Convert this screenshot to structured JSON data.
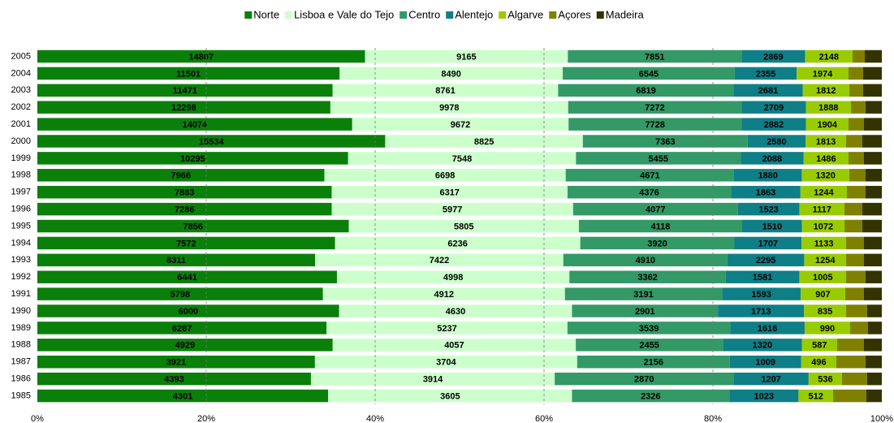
{
  "chart_data": {
    "type": "stacked-bar-100",
    "orientation": "horizontal",
    "categories": [
      "2005",
      "2004",
      "2003",
      "2002",
      "2001",
      "2000",
      "1999",
      "1998",
      "1997",
      "1996",
      "1995",
      "1994",
      "1993",
      "1992",
      "1991",
      "1990",
      "1989",
      "1988",
      "1987",
      "1986",
      "1985"
    ],
    "series": [
      {
        "name": "Norte",
        "color": "#0a800a",
        "label_color": "#ffffff",
        "values": [
          14807,
          11501,
          11471,
          12298,
          14074,
          15534,
          10295,
          7966,
          7883,
          7286,
          7856,
          7572,
          8311,
          6441,
          5798,
          6000,
          6287,
          4929,
          3921,
          4393,
          4301
        ]
      },
      {
        "name": "Lisboa e Vale do Tejo",
        "color": "#ccffcc",
        "label_color": "#000000",
        "values": [
          9165,
          8490,
          8761,
          9978,
          9672,
          8825,
          7548,
          6698,
          6317,
          5977,
          5805,
          6236,
          7422,
          4998,
          4912,
          4630,
          5237,
          4057,
          3704,
          3914,
          3605
        ]
      },
      {
        "name": "Centro",
        "color": "#339966",
        "label_color": "#ffffff",
        "values": [
          7851,
          6545,
          6819,
          7272,
          7728,
          7363,
          5455,
          4671,
          4376,
          4077,
          4118,
          3920,
          4910,
          3362,
          3191,
          2901,
          3539,
          2455,
          2156,
          2870,
          2326
        ]
      },
      {
        "name": "Alentejo",
        "color": "#0e7f86",
        "label_color": "#ffffff",
        "values": [
          2869,
          2355,
          2681,
          2709,
          2882,
          2580,
          2088,
          1880,
          1863,
          1523,
          1510,
          1707,
          2295,
          1581,
          1593,
          1713,
          1616,
          1320,
          1009,
          1207,
          1023
        ]
      },
      {
        "name": "Algarve",
        "color": "#99cc00",
        "label_color": "#000000",
        "values": [
          2148,
          1974,
          1812,
          1888,
          1904,
          1813,
          1486,
          1320,
          1244,
          1117,
          1072,
          1133,
          1254,
          1005,
          907,
          835,
          990,
          587,
          496,
          536,
          512
        ]
      },
      {
        "name": "Açores",
        "color": "#808000",
        "values": [
          550,
          556,
          536,
          613,
          690,
          725,
          511,
          451,
          500,
          442,
          450,
          454,
          534,
          419,
          379,
          420,
          388,
          447,
          413,
          404,
          492
        ]
      },
      {
        "name": "Madeira",
        "color": "#333300",
        "values": [
          771,
          711,
          726,
          681,
          798,
          870,
          592,
          451,
          435,
          482,
          491,
          454,
          534,
          349,
          363,
          291,
          300,
          298,
          229,
          235,
          228
        ]
      }
    ],
    "xlim": [
      0,
      100
    ],
    "xticks": [
      {
        "value": 0,
        "label": "0%"
      },
      {
        "value": 20,
        "label": "20%"
      },
      {
        "value": 40,
        "label": "40%"
      },
      {
        "value": 60,
        "label": "60%"
      },
      {
        "value": 80,
        "label": "80%"
      },
      {
        "value": 100,
        "label": "100%"
      }
    ],
    "grid": true,
    "legend": "top"
  }
}
